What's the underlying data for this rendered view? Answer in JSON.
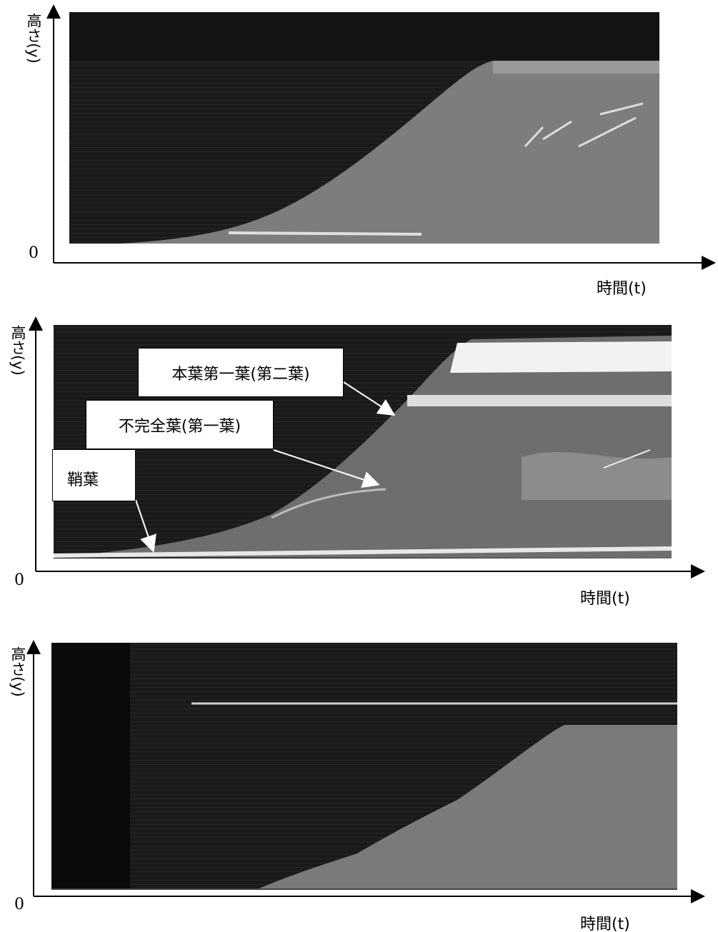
{
  "panels": [
    {
      "y_label": "高さ(y)",
      "origin": "0",
      "x_label": "時間(t)"
    },
    {
      "y_label": "高さ(y)",
      "origin": "0",
      "x_label": "時間(t)",
      "callouts": [
        "本葉第一葉(第二葉)",
        "不完全葉(第一葉)",
        "鞘葉"
      ]
    },
    {
      "y_label": "高さ(y)",
      "origin": "0",
      "x_label": "時間(t)"
    }
  ]
}
